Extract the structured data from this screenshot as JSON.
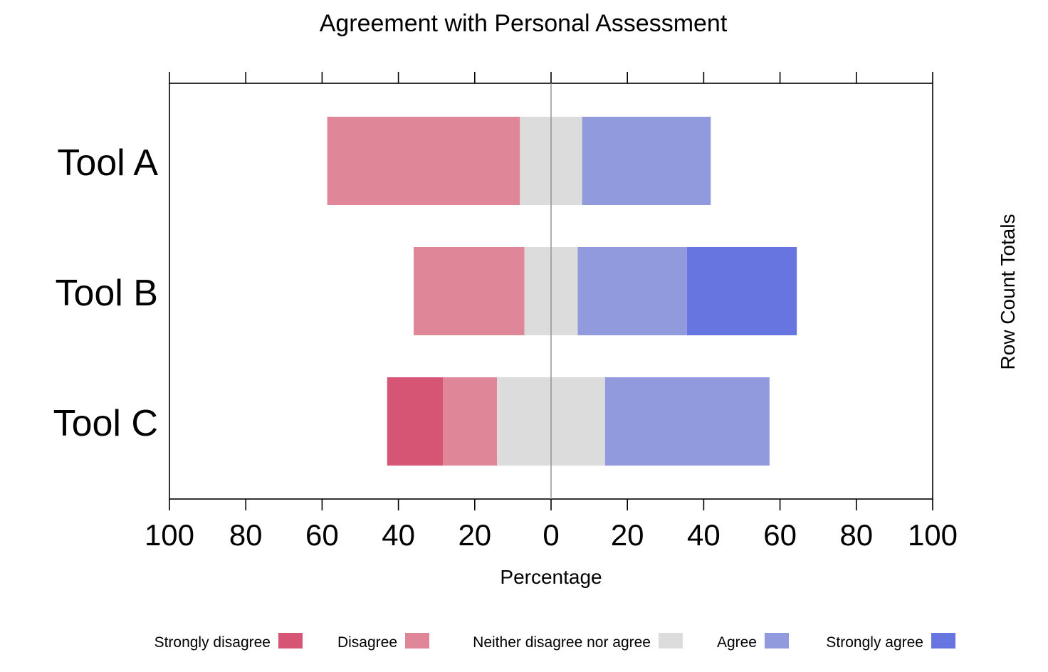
{
  "chart_data": {
    "type": "bar",
    "orientation": "horizontal",
    "stacking": "diverging",
    "title": "Agreement with Personal Assessment",
    "xlabel": "Percentage",
    "right_label": "Row Count Totals",
    "xlim": [
      -100,
      100
    ],
    "x_ticks": [
      -100,
      -80,
      -60,
      -40,
      -20,
      0,
      20,
      40,
      60,
      80,
      100
    ],
    "x_tick_labels": [
      "100",
      "80",
      "60",
      "40",
      "20",
      "0",
      "20",
      "40",
      "60",
      "80",
      "100"
    ],
    "categories": [
      "Tool A",
      "Tool B",
      "Tool C"
    ],
    "series": [
      {
        "name": "Strongly disagree",
        "color": "#d75574",
        "values": [
          0,
          0,
          14.6
        ]
      },
      {
        "name": "Disagree",
        "color": "#df8699",
        "values": [
          50.5,
          29.0,
          14.2
        ]
      },
      {
        "name": "Neither disagree nor agree",
        "color": "#dcdcdc",
        "values": [
          16.3,
          14.0,
          28.3
        ]
      },
      {
        "name": "Agree",
        "color": "#929ade",
        "values": [
          33.7,
          28.6,
          43.1
        ]
      },
      {
        "name": "Strongly agree",
        "color": "#6675e0",
        "values": [
          0,
          28.8,
          0
        ]
      }
    ],
    "neutral_series": "Neither disagree nor agree",
    "legend_position": "bottom",
    "grid": false
  }
}
